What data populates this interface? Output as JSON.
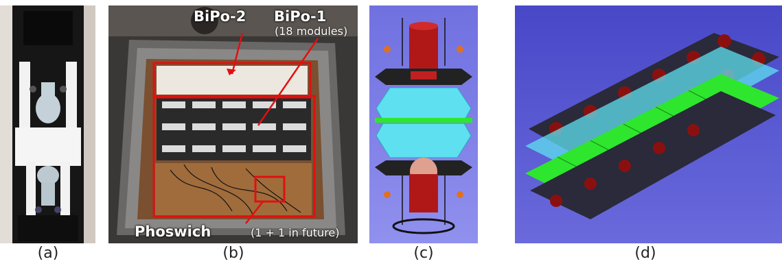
{
  "panels": [
    {
      "caption": "(a)"
    },
    {
      "caption": "(b)"
    },
    {
      "caption": "(c)"
    },
    {
      "caption": "(d)"
    }
  ],
  "annotations": {
    "bipo2": "BiPo-2",
    "bipo1": "BiPo-1",
    "modules": "(18 modules)",
    "phoswich": "Phoswich",
    "future": "(1 + 1 in future)"
  },
  "colors": {
    "highlight": "#e01010",
    "scintillator": "#2ee62e",
    "lightguide": "#5fe0f0",
    "pmt_red": "#b01818",
    "background_blue": "#5a5ad8"
  }
}
